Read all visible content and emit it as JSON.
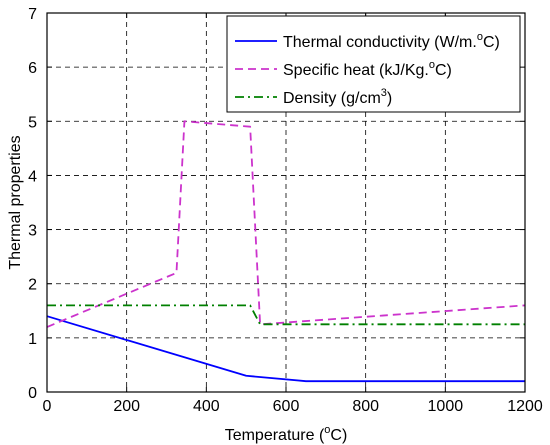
{
  "chart_data": {
    "type": "line",
    "title": "",
    "xlabel": "Temperature (",
    "xlabel_sup": "o",
    "xlabel_suffix": "C)",
    "ylabel": "Thermal properties",
    "xlim": [
      0,
      1200
    ],
    "ylim": [
      0,
      7
    ],
    "x_ticks": [
      "0",
      "200",
      "400",
      "600",
      "800",
      "1000",
      "1200"
    ],
    "y_ticks": [
      "0",
      "1",
      "2",
      "3",
      "4",
      "5",
      "6",
      "7"
    ],
    "grid": true,
    "grid_style": "dashed",
    "legend_position": "top-right",
    "series": [
      {
        "name": "Thermal conductivity (W/m.",
        "name_sup": "o",
        "name_suffix": "C)",
        "color": "#0000ff",
        "style": "solid",
        "x": [
          0,
          500,
          650,
          1200
        ],
        "y": [
          1.4,
          0.3,
          0.2,
          0.2
        ]
      },
      {
        "name": "Specific heat (kJ/Kg.",
        "name_sup": "o",
        "name_suffix": "C)",
        "color": "#cc33cc",
        "style": "dashed",
        "x": [
          0,
          325,
          345,
          510,
          535,
          1200
        ],
        "y": [
          1.2,
          2.2,
          5.0,
          4.9,
          1.25,
          1.6
        ]
      },
      {
        "name": "Density (g/cm",
        "name_sup": "3",
        "name_suffix": ")",
        "color": "#008000",
        "style": "dashdot",
        "x": [
          0,
          510,
          535,
          1200
        ],
        "y": [
          1.6,
          1.6,
          1.25,
          1.25
        ]
      }
    ]
  }
}
